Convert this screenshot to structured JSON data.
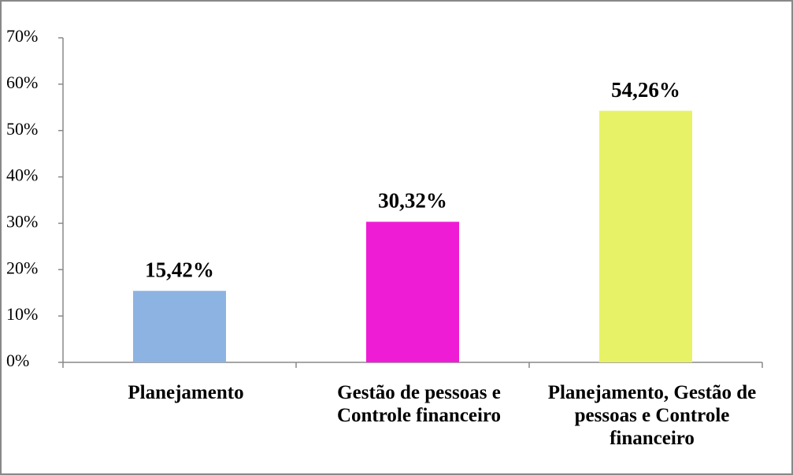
{
  "chart_data": {
    "type": "bar",
    "categories": [
      "Planejamento",
      "Gestão de pessoas e Controle financeiro",
      "Planejamento, Gestão de pessoas e Controle financeiro"
    ],
    "values": [
      15.42,
      30.32,
      54.26
    ],
    "value_labels": [
      "15,42%",
      "30,32%",
      "54,26%"
    ],
    "colors": [
      "#8db3e2",
      "#ee1cd4",
      "#e8f266"
    ],
    "ylim": [
      0,
      70
    ],
    "yticks": [
      {
        "value": 0,
        "label": "0%"
      },
      {
        "value": 10,
        "label": "10%"
      },
      {
        "value": 20,
        "label": "20%"
      },
      {
        "value": 30,
        "label": "30%"
      },
      {
        "value": 40,
        "label": "40%"
      },
      {
        "value": 50,
        "label": "50%"
      },
      {
        "value": 60,
        "label": "60%"
      },
      {
        "value": 70,
        "label": "70%"
      }
    ]
  }
}
